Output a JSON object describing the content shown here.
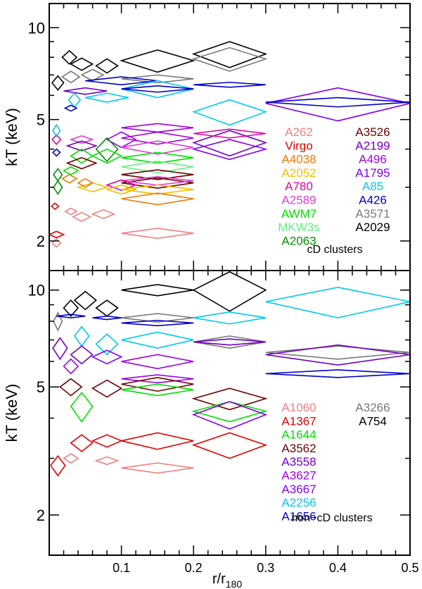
{
  "chart_data": [
    {
      "type": "scatter",
      "marker": "diamond",
      "title": "",
      "annotation": "cD clusters",
      "xlabel": "r/r",
      "xlabel_sub": "180",
      "ylabel": "kT (keV)",
      "xlim": [
        0.0,
        0.5
      ],
      "ylim": [
        1.6,
        12.0
      ],
      "yscale": "log",
      "ytick_labels": [
        {
          "value": 2,
          "label": "2"
        },
        {
          "value": 5,
          "label": "5"
        },
        {
          "value": 10,
          "label": "10"
        }
      ],
      "legend": [
        {
          "name": "A262",
          "color": "#f08080"
        },
        {
          "name": "Virgo",
          "color": "#e00000"
        },
        {
          "name": "A4038",
          "color": "#f07800"
        },
        {
          "name": "A2052",
          "color": "#f0c000"
        },
        {
          "name": "A780",
          "color": "#e0009a"
        },
        {
          "name": "A2589",
          "color": "#e040d0"
        },
        {
          "name": "AWM7",
          "color": "#00e000"
        },
        {
          "name": "MKW3s",
          "color": "#60f080"
        },
        {
          "name": "A2063",
          "color": "#009000"
        },
        {
          "name": "A3526",
          "color": "#6e0000"
        },
        {
          "name": "A2199",
          "color": "#7000c0"
        },
        {
          "name": "A496",
          "color": "#a000e0"
        },
        {
          "name": "A1795",
          "color": "#8000f0"
        },
        {
          "name": "A85",
          "color": "#00c8f0"
        },
        {
          "name": "A426",
          "color": "#0000c8"
        },
        {
          "name": "A3571",
          "color": "#787878"
        },
        {
          "name": "A2029",
          "color": "#000000"
        }
      ],
      "points": [
        {
          "c": "#000000",
          "x": 0.15,
          "y": 7.8,
          "dx": 0.05,
          "dy": 0.65
        },
        {
          "c": "#000000",
          "x": 0.25,
          "y": 8.2,
          "dx": 0.05,
          "dy": 0.8
        },
        {
          "c": "#787878",
          "x": 0.25,
          "y": 7.9,
          "dx": 0.05,
          "dy": 0.7
        },
        {
          "c": "#000000",
          "x": 0.08,
          "y": 7.5,
          "dx": 0.015,
          "dy": 0.4
        },
        {
          "c": "#000000",
          "x": 0.045,
          "y": 7.6,
          "dx": 0.015,
          "dy": 0.35
        },
        {
          "c": "#000000",
          "x": 0.028,
          "y": 8.0,
          "dx": 0.01,
          "dy": 0.4
        },
        {
          "c": "#000000",
          "x": 0.012,
          "y": 6.6,
          "dx": 0.008,
          "dy": 0.35
        },
        {
          "c": "#787878",
          "x": 0.03,
          "y": 6.9,
          "dx": 0.012,
          "dy": 0.3
        },
        {
          "c": "#787878",
          "x": 0.06,
          "y": 7.0,
          "dx": 0.015,
          "dy": 0.3
        },
        {
          "c": "#787878",
          "x": 0.15,
          "y": 6.8,
          "dx": 0.05,
          "dy": 0.2
        },
        {
          "c": "#0000c8",
          "x": 0.1,
          "y": 6.7,
          "dx": 0.05,
          "dy": 0.2
        },
        {
          "c": "#0000c8",
          "x": 0.25,
          "y": 6.5,
          "dx": 0.05,
          "dy": 0.12
        },
        {
          "c": "#00c8f0",
          "x": 0.15,
          "y": 6.3,
          "dx": 0.05,
          "dy": 0.4
        },
        {
          "c": "#7000c0",
          "x": 0.05,
          "y": 6.2,
          "dx": 0.03,
          "dy": 0.15
        },
        {
          "c": "#0000c8",
          "x": 0.15,
          "y": 6.3,
          "dx": 0.05,
          "dy": 0.15
        },
        {
          "c": "#00c8f0",
          "x": 0.035,
          "y": 5.8,
          "dx": 0.008,
          "dy": 0.3
        },
        {
          "c": "#0000c8",
          "x": 0.03,
          "y": 5.45,
          "dx": 0.008,
          "dy": 0.12
        },
        {
          "c": "#00c8f0",
          "x": 0.08,
          "y": 5.9,
          "dx": 0.03,
          "dy": 0.2
        },
        {
          "c": "#8000f0",
          "x": 0.4,
          "y": 5.65,
          "dx": 0.1,
          "dy": 0.7
        },
        {
          "c": "#0000c8",
          "x": 0.4,
          "y": 5.7,
          "dx": 0.1,
          "dy": 0.2
        },
        {
          "c": "#00c8f0",
          "x": 0.25,
          "y": 5.3,
          "dx": 0.05,
          "dy": 0.5
        },
        {
          "c": "#a000e0",
          "x": 0.15,
          "y": 4.7,
          "dx": 0.05,
          "dy": 0.15
        },
        {
          "c": "#a000e0",
          "x": 0.15,
          "y": 4.35,
          "dx": 0.05,
          "dy": 0.2
        },
        {
          "c": "#a000e0",
          "x": 0.1,
          "y": 4.3,
          "dx": 0.02,
          "dy": 0.25
        },
        {
          "c": "#7000c0",
          "x": 0.25,
          "y": 4.2,
          "dx": 0.05,
          "dy": 0.4
        },
        {
          "c": "#8000f0",
          "x": 0.25,
          "y": 4.0,
          "dx": 0.05,
          "dy": 0.3
        },
        {
          "c": "#e0009a",
          "x": 0.25,
          "y": 4.5,
          "dx": 0.05,
          "dy": 0.15
        },
        {
          "c": "#e040d0",
          "x": 0.15,
          "y": 4.05,
          "dx": 0.05,
          "dy": 0.2
        },
        {
          "c": "#e040d0",
          "x": 0.045,
          "y": 4.3,
          "dx": 0.015,
          "dy": 0.12
        },
        {
          "c": "#7000c0",
          "x": 0.045,
          "y": 4.1,
          "dx": 0.02,
          "dy": 0.15
        },
        {
          "c": "#009000",
          "x": 0.08,
          "y": 4.0,
          "dx": 0.015,
          "dy": 0.35
        },
        {
          "c": "#00e000",
          "x": 0.08,
          "y": 3.8,
          "dx": 0.02,
          "dy": 0.2
        },
        {
          "c": "#00e000",
          "x": 0.045,
          "y": 3.8,
          "dx": 0.015,
          "dy": 0.2
        },
        {
          "c": "#00e000",
          "x": 0.15,
          "y": 3.75,
          "dx": 0.05,
          "dy": 0.15
        },
        {
          "c": "#60f080",
          "x": 0.15,
          "y": 3.5,
          "dx": 0.05,
          "dy": 0.15
        },
        {
          "c": "#6e0000",
          "x": 0.045,
          "y": 3.6,
          "dx": 0.02,
          "dy": 0.15
        },
        {
          "c": "#6e0000",
          "x": 0.15,
          "y": 3.3,
          "dx": 0.05,
          "dy": 0.12
        },
        {
          "c": "#6e0000",
          "x": 0.15,
          "y": 3.1,
          "dx": 0.05,
          "dy": 0.12
        },
        {
          "c": "#e040d0",
          "x": 0.15,
          "y": 3.15,
          "dx": 0.05,
          "dy": 0.1
        },
        {
          "c": "#e0009a",
          "x": 0.1,
          "y": 3.05,
          "dx": 0.02,
          "dy": 0.12
        },
        {
          "c": "#f0c000",
          "x": 0.06,
          "y": 3.0,
          "dx": 0.02,
          "dy": 0.1
        },
        {
          "c": "#f0c000",
          "x": 0.1,
          "y": 2.95,
          "dx": 0.02,
          "dy": 0.1
        },
        {
          "c": "#f0c000",
          "x": 0.15,
          "y": 2.95,
          "dx": 0.05,
          "dy": 0.1
        },
        {
          "c": "#f07800",
          "x": 0.15,
          "y": 2.75,
          "dx": 0.05,
          "dy": 0.12
        },
        {
          "c": "#f07800",
          "x": 0.028,
          "y": 3.2,
          "dx": 0.01,
          "dy": 0.1
        },
        {
          "c": "#f07800",
          "x": 0.05,
          "y": 3.1,
          "dx": 0.01,
          "dy": 0.1
        },
        {
          "c": "#00e000",
          "x": 0.03,
          "y": 3.4,
          "dx": 0.01,
          "dy": 0.1
        },
        {
          "c": "#009000",
          "x": 0.012,
          "y": 3.3,
          "dx": 0.006,
          "dy": 0.15
        },
        {
          "c": "#009000",
          "x": 0.012,
          "y": 3.0,
          "dx": 0.006,
          "dy": 0.15
        },
        {
          "c": "#e0009a",
          "x": 0.01,
          "y": 4.3,
          "dx": 0.006,
          "dy": 0.15
        },
        {
          "c": "#00c8f0",
          "x": 0.01,
          "y": 4.6,
          "dx": 0.005,
          "dy": 0.2
        },
        {
          "c": "#0000c8",
          "x": 0.01,
          "y": 3.9,
          "dx": 0.005,
          "dy": 0.1
        },
        {
          "c": "#e00000",
          "x": 0.008,
          "y": 2.6,
          "dx": 0.005,
          "dy": 0.06
        },
        {
          "c": "#f08080",
          "x": 0.03,
          "y": 2.5,
          "dx": 0.008,
          "dy": 0.06
        },
        {
          "c": "#f08080",
          "x": 0.045,
          "y": 2.4,
          "dx": 0.012,
          "dy": 0.08
        },
        {
          "c": "#f08080",
          "x": 0.075,
          "y": 2.45,
          "dx": 0.015,
          "dy": 0.08
        },
        {
          "c": "#f08080",
          "x": 0.15,
          "y": 2.12,
          "dx": 0.05,
          "dy": 0.08
        },
        {
          "c": "#e00000",
          "x": 0.01,
          "y": 2.1,
          "dx": 0.01,
          "dy": 0.05
        },
        {
          "c": "#f08080",
          "x": 0.01,
          "y": 1.97,
          "dx": 0.006,
          "dy": 0.06
        }
      ]
    },
    {
      "type": "scatter",
      "marker": "diamond",
      "title": "",
      "annotation": "non−cD clusters",
      "xlabel": "r/r",
      "xlabel_sub": "180",
      "ylabel": "kT (keV)",
      "xlim": [
        0.0,
        0.5
      ],
      "ylim": [
        1.5,
        11.5
      ],
      "yscale": "log",
      "xtick_labels": [
        {
          "value": 0.1,
          "label": "0.1"
        },
        {
          "value": 0.2,
          "label": "0.2"
        },
        {
          "value": 0.3,
          "label": "0.3"
        },
        {
          "value": 0.4,
          "label": "0.4"
        },
        {
          "value": 0.5,
          "label": "0.5"
        }
      ],
      "ytick_labels": [
        {
          "value": 2,
          "label": "2"
        },
        {
          "value": 5,
          "label": "5"
        },
        {
          "value": 10,
          "label": "10"
        }
      ],
      "legend": [
        {
          "name": "A1060",
          "color": "#f08080"
        },
        {
          "name": "A1367",
          "color": "#e00000"
        },
        {
          "name": "A1644",
          "color": "#00e000"
        },
        {
          "name": "A3562",
          "color": "#6e0000"
        },
        {
          "name": "A3558",
          "color": "#7000c0"
        },
        {
          "name": "A3627",
          "color": "#a000e0"
        },
        {
          "name": "A3667",
          "color": "#8000f0"
        },
        {
          "name": "A2256",
          "color": "#00c8f0"
        },
        {
          "name": "A1656",
          "color": "#0000c8"
        },
        {
          "name": "A3266",
          "color": "#787878"
        },
        {
          "name": "A754",
          "color": "#000000"
        }
      ],
      "points": [
        {
          "c": "#000000",
          "x": 0.25,
          "y": 10.0,
          "dx": 0.05,
          "dy": 1.4
        },
        {
          "c": "#000000",
          "x": 0.15,
          "y": 10.0,
          "dx": 0.05,
          "dy": 0.4
        },
        {
          "c": "#000000",
          "x": 0.08,
          "y": 8.8,
          "dx": 0.015,
          "dy": 0.5
        },
        {
          "c": "#000000",
          "x": 0.05,
          "y": 9.3,
          "dx": 0.015,
          "dy": 0.6
        },
        {
          "c": "#000000",
          "x": 0.03,
          "y": 8.8,
          "dx": 0.01,
          "dy": 0.5
        },
        {
          "c": "#787878",
          "x": 0.012,
          "y": 8.0,
          "dx": 0.006,
          "dy": 0.5
        },
        {
          "c": "#787878",
          "x": 0.15,
          "y": 8.2,
          "dx": 0.05,
          "dy": 0.25
        },
        {
          "c": "#0000c8",
          "x": 0.15,
          "y": 7.9,
          "dx": 0.05,
          "dy": 0.15
        },
        {
          "c": "#0000c8",
          "x": 0.08,
          "y": 8.2,
          "dx": 0.02,
          "dy": 0.1
        },
        {
          "c": "#0000c8",
          "x": 0.03,
          "y": 8.3,
          "dx": 0.02,
          "dy": 0.1
        },
        {
          "c": "#00c8f0",
          "x": 0.4,
          "y": 9.2,
          "dx": 0.1,
          "dy": 1.0
        },
        {
          "c": "#00c8f0",
          "x": 0.25,
          "y": 8.2,
          "dx": 0.05,
          "dy": 0.35
        },
        {
          "c": "#00c8f0",
          "x": 0.15,
          "y": 7.0,
          "dx": 0.05,
          "dy": 0.4
        },
        {
          "c": "#00c8f0",
          "x": 0.08,
          "y": 6.8,
          "dx": 0.015,
          "dy": 0.5
        },
        {
          "c": "#00c8f0",
          "x": 0.045,
          "y": 7.2,
          "dx": 0.01,
          "dy": 0.5
        },
        {
          "c": "#787878",
          "x": 0.25,
          "y": 6.9,
          "dx": 0.05,
          "dy": 0.3
        },
        {
          "c": "#7000c0",
          "x": 0.25,
          "y": 6.9,
          "dx": 0.05,
          "dy": 0.15
        },
        {
          "c": "#787878",
          "x": 0.4,
          "y": 6.4,
          "dx": 0.1,
          "dy": 0.3
        },
        {
          "c": "#7000c0",
          "x": 0.4,
          "y": 6.3,
          "dx": 0.1,
          "dy": 0.45
        },
        {
          "c": "#0000c8",
          "x": 0.4,
          "y": 5.5,
          "dx": 0.1,
          "dy": 0.15
        },
        {
          "c": "#a000e0",
          "x": 0.15,
          "y": 6.0,
          "dx": 0.05,
          "dy": 0.3
        },
        {
          "c": "#8000f0",
          "x": 0.08,
          "y": 6.2,
          "dx": 0.02,
          "dy": 0.3
        },
        {
          "c": "#7000c0",
          "x": 0.045,
          "y": 6.3,
          "dx": 0.015,
          "dy": 0.4
        },
        {
          "c": "#7000c0",
          "x": 0.015,
          "y": 6.6,
          "dx": 0.01,
          "dy": 0.5
        },
        {
          "c": "#a000e0",
          "x": 0.03,
          "y": 5.8,
          "dx": 0.01,
          "dy": 0.3
        },
        {
          "c": "#a000e0",
          "x": 0.15,
          "y": 5.3,
          "dx": 0.05,
          "dy": 0.15
        },
        {
          "c": "#6e0000",
          "x": 0.15,
          "y": 5.1,
          "dx": 0.05,
          "dy": 0.25
        },
        {
          "c": "#6e0000",
          "x": 0.08,
          "y": 4.95,
          "dx": 0.02,
          "dy": 0.3
        },
        {
          "c": "#6e0000",
          "x": 0.03,
          "y": 5.0,
          "dx": 0.015,
          "dy": 0.3
        },
        {
          "c": "#00e000",
          "x": 0.15,
          "y": 4.9,
          "dx": 0.05,
          "dy": 0.2
        },
        {
          "c": "#00e000",
          "x": 0.045,
          "y": 4.35,
          "dx": 0.015,
          "dy": 0.45
        },
        {
          "c": "#6e0000",
          "x": 0.25,
          "y": 4.6,
          "dx": 0.05,
          "dy": 0.35
        },
        {
          "c": "#00e000",
          "x": 0.25,
          "y": 4.2,
          "dx": 0.05,
          "dy": 0.3
        },
        {
          "c": "#8000f0",
          "x": 0.25,
          "y": 4.1,
          "dx": 0.05,
          "dy": 0.4
        },
        {
          "c": "#e00000",
          "x": 0.15,
          "y": 3.4,
          "dx": 0.05,
          "dy": 0.2
        },
        {
          "c": "#e00000",
          "x": 0.25,
          "y": 3.3,
          "dx": 0.05,
          "dy": 0.3
        },
        {
          "c": "#e00000",
          "x": 0.08,
          "y": 3.4,
          "dx": 0.02,
          "dy": 0.15
        },
        {
          "c": "#e00000",
          "x": 0.045,
          "y": 3.35,
          "dx": 0.015,
          "dy": 0.2
        },
        {
          "c": "#e00000",
          "x": 0.012,
          "y": 2.85,
          "dx": 0.01,
          "dy": 0.2
        },
        {
          "c": "#f08080",
          "x": 0.15,
          "y": 2.8,
          "dx": 0.05,
          "dy": 0.1
        },
        {
          "c": "#f08080",
          "x": 0.08,
          "y": 2.95,
          "dx": 0.015,
          "dy": 0.08
        },
        {
          "c": "#f08080",
          "x": 0.03,
          "y": 3.0,
          "dx": 0.01,
          "dy": 0.1
        }
      ]
    }
  ]
}
